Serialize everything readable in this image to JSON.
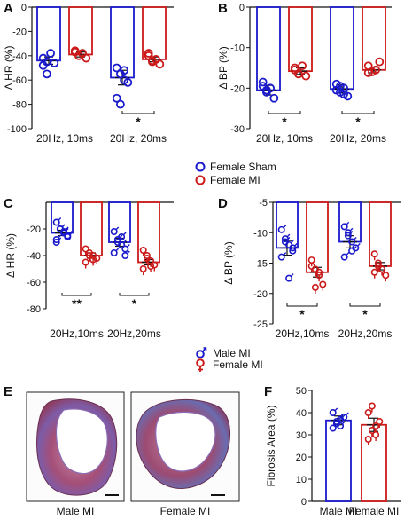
{
  "colors": {
    "sham": "#1a1acc",
    "mi": "#cc1a1a",
    "axis": "#111111"
  },
  "panels": [
    {
      "label": "A",
      "chart_data": {
        "type": "bar",
        "ylabel": "Δ HR (%)",
        "ylim": [
          -100,
          0
        ],
        "yticks": [
          0,
          -20,
          -40,
          -60,
          -80,
          -100
        ],
        "categories": [
          "20Hz, 10ms",
          "20Hz, 20ms"
        ],
        "series": [
          {
            "name": "Female Sham",
            "values": [
              -44,
              -58
            ],
            "err": [
              3,
              6
            ],
            "points": [
              [
                -42,
                -45,
                -38,
                -46,
                -48,
                -55
              ],
              [
                -50,
                -55,
                -60,
                -62,
                -75,
                -80,
                -52
              ]
            ]
          },
          {
            "name": "Female MI",
            "values": [
              -39,
              -43
            ],
            "err": [
              2,
              2
            ],
            "points": [
              [
                -37,
                -40,
                -38,
                -42,
                -36
              ],
              [
                -40,
                -45,
                -43,
                -47,
                -38,
                -44
              ]
            ]
          }
        ],
        "annotations": [
          {
            "text": "*",
            "category": 1
          }
        ]
      }
    },
    {
      "label": "B",
      "chart_data": {
        "type": "bar",
        "ylabel": "Δ BP (%)",
        "ylim": [
          -30,
          0
        ],
        "yticks": [
          0,
          -10,
          -20,
          -30
        ],
        "categories": [
          "20Hz, 10ms",
          "20Hz, 20ms"
        ],
        "series": [
          {
            "name": "Female Sham",
            "values": [
              -20.5,
              -20.2
            ],
            "err": [
              1.2,
              1.0
            ],
            "points": [
              [
                -18.5,
                -21,
                -20,
                -22.5,
                -19.5,
                -20.5
              ],
              [
                -19,
                -21,
                -20,
                -22,
                -20.5,
                -19.5,
                -21.5
              ]
            ]
          },
          {
            "name": "Female MI",
            "values": [
              -15.8,
              -15.5
            ],
            "err": [
              0.8,
              0.7
            ],
            "points": [
              [
                -15,
                -16.5,
                -14.5,
                -17,
                -15.5
              ],
              [
                -14.5,
                -16,
                -15.5,
                -13.5,
                -16.2
              ]
            ]
          }
        ],
        "annotations": [
          {
            "text": "*",
            "category": 0
          },
          {
            "text": "*",
            "category": 1
          }
        ]
      }
    },
    {
      "label": "C",
      "chart_data": {
        "type": "bar",
        "ylabel": "Δ HR (%)",
        "ylim": [
          -80,
          0
        ],
        "yticks": [
          -20,
          -40,
          -60,
          -80
        ],
        "categories": [
          "20Hz,10ms",
          "20Hz,20ms"
        ],
        "series": [
          {
            "name": "Male MI",
            "values": [
              -23,
              -30
            ],
            "err": [
              2,
              3
            ],
            "points": [
              [
                -15,
                -20,
                -23,
                -25,
                -28,
                -20,
                -22,
                -26,
                -30
              ],
              [
                -22,
                -28,
                -32,
                -35,
                -38,
                -30,
                -26,
                -40
              ]
            ]
          },
          {
            "name": "Female MI",
            "values": [
              -40,
              -45
            ],
            "err": [
              2,
              2
            ],
            "points": [
              [
                -35,
                -38,
                -40,
                -42,
                -45,
                -40,
                -43
              ],
              [
                -36,
                -40,
                -44,
                -47,
                -50,
                -42,
                -48
              ]
            ]
          }
        ],
        "annotations": [
          {
            "text": "**",
            "category": 0
          },
          {
            "text": "*",
            "category": 1
          }
        ]
      }
    },
    {
      "label": "D",
      "chart_data": {
        "type": "bar",
        "ylabel": "Δ BP (%)",
        "ylim": [
          -25,
          -5
        ],
        "yticks": [
          -5,
          -10,
          -15,
          -20,
          -25
        ],
        "categories": [
          "20Hz,10ms",
          "20Hz,20ms"
        ],
        "series": [
          {
            "name": "Male MI",
            "values": [
              -12.5,
              -11.5
            ],
            "err": [
              1.2,
              1.0
            ],
            "points": [
              [
                -9.5,
                -11,
                -12,
                -13,
                -14,
                -11.5,
                -17.5,
                -12.5
              ],
              [
                -9,
                -10,
                -11.5,
                -12.5,
                -14,
                -10.5,
                -13
              ]
            ]
          },
          {
            "name": "Female MI",
            "values": [
              -16.5,
              -15.5
            ],
            "err": [
              0.8,
              0.6
            ],
            "points": [
              [
                -14.5,
                -16,
                -17,
                -18.5,
                -15.5,
                -19,
                -16.5
              ],
              [
                -13.5,
                -15,
                -16,
                -17,
                -16.5,
                -15.5,
                -16
              ]
            ]
          }
        ],
        "annotations": [
          {
            "text": "*",
            "category": 0
          },
          {
            "text": "*",
            "category": 1
          }
        ]
      }
    },
    {
      "label": "F",
      "chart_data": {
        "type": "bar",
        "ylabel": "Fibrosis Area (%)",
        "ylim": [
          0,
          50
        ],
        "yticks": [
          0,
          10,
          20,
          30,
          40,
          50
        ],
        "categories": [
          "Male MI",
          "Female MI"
        ],
        "series": [
          {
            "name": "Male MI",
            "values": [
              36.5,
              null
            ],
            "err": [
              2,
              null
            ],
            "points": [
              [
                33,
                35,
                37,
                38,
                40,
                36,
                34
              ],
              []
            ]
          },
          {
            "name": "Female MI",
            "values": [
              null,
              34.5
            ],
            "err": [
              null,
              3
            ],
            "points": [
              [],
              [
                28,
                32,
                34,
                36,
                40,
                43,
                30
              ]
            ]
          }
        ]
      }
    }
  ],
  "legends": {
    "top": [
      "Female Sham",
      "Female MI"
    ],
    "middle": [
      "Male MI",
      "Female MI"
    ]
  },
  "panel_e": {
    "label": "E",
    "captions": [
      "Male MI",
      "Female MI"
    ]
  }
}
